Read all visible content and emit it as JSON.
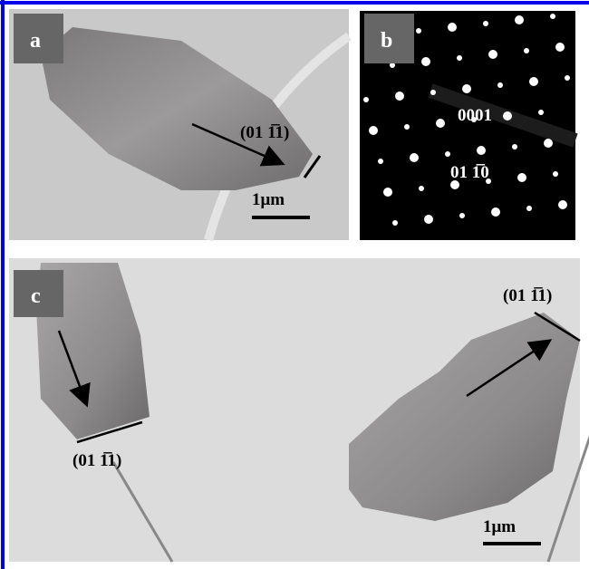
{
  "panels": [
    {
      "label": "a",
      "annotations": [
        "(01 1̅1)"
      ],
      "scale_bar": "1μm"
    },
    {
      "label": "b",
      "annotations": [
        "0001",
        "01 1̅0"
      ]
    },
    {
      "label": "c",
      "annotations": [
        "(01 1̅1)",
        "(01 1̅1)"
      ],
      "scale_bar": "1μm"
    }
  ]
}
